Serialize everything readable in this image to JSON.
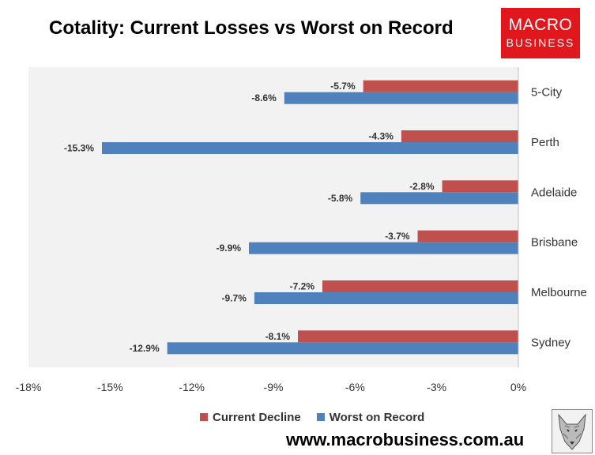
{
  "title": "Cotality: Current Losses vs Worst on Record",
  "logo": {
    "line1": "MACRO",
    "line2": "BUSINESS"
  },
  "website": "www.macrobusiness.com.au",
  "colors": {
    "current": "#c0504d",
    "worst": "#4f81bd",
    "plot_bg": "#f2f2f2",
    "logo_red": "#e1171e"
  },
  "chart_data": {
    "type": "bar",
    "orientation": "horizontal",
    "title": "Cotality: Current Losses vs Worst on Record",
    "categories": [
      "5-City",
      "Perth",
      "Adelaide",
      "Brisbane",
      "Melbourne",
      "Sydney"
    ],
    "series": [
      {
        "name": "Current Decline",
        "values": [
          -5.7,
          -4.3,
          -2.8,
          -3.7,
          -7.2,
          -8.1
        ],
        "labels": [
          "-5.7%",
          "-4.3%",
          "-2.8%",
          "-3.7%",
          "-7.2%",
          "-8.1%"
        ]
      },
      {
        "name": "Worst on Record",
        "values": [
          -8.6,
          -15.3,
          -5.8,
          -9.9,
          -9.7,
          -12.9
        ],
        "labels": [
          "-8.6%",
          "-15.3%",
          "-5.8%",
          "-9.9%",
          "-9.7%",
          "-12.9%"
        ]
      }
    ],
    "xlim": [
      -18,
      0
    ],
    "xticks": [
      -18,
      -15,
      -12,
      -9,
      -6,
      -3,
      0
    ],
    "xtick_labels": [
      "-18%",
      "-15%",
      "-12%",
      "-9%",
      "-6%",
      "-3%",
      "0%"
    ],
    "xlabel": "",
    "ylabel": "",
    "legend_position": "bottom",
    "grid": false
  }
}
